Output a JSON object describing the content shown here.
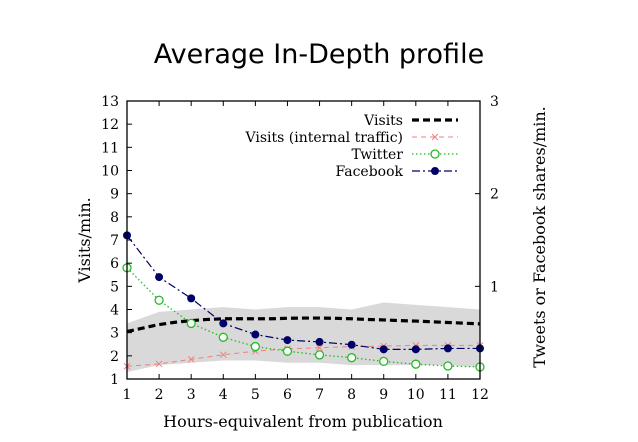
{
  "chart_data": {
    "type": "line",
    "title": "Average In-Depth profile",
    "xlabel": "Hours-equivalent from publication",
    "ylabel": "Visits/min.",
    "y2label": "Tweets or Facebook shares/min.",
    "x": [
      1,
      2,
      3,
      4,
      5,
      6,
      7,
      8,
      9,
      10,
      11,
      12
    ],
    "xlim": [
      1,
      12
    ],
    "ylim": [
      1,
      13
    ],
    "y2lim": [
      0,
      3
    ],
    "xticks": [
      1,
      2,
      3,
      4,
      5,
      6,
      7,
      8,
      9,
      10,
      11,
      12
    ],
    "yticks": [
      1,
      2,
      3,
      4,
      5,
      6,
      7,
      8,
      9,
      10,
      11,
      12,
      13
    ],
    "y2ticks": [
      1,
      2,
      3
    ],
    "grid": false,
    "legend_position": "top-right",
    "band": {
      "axis": "left",
      "color": "#d9d9d9",
      "upper": [
        3.4,
        3.9,
        4.0,
        4.1,
        4.0,
        4.1,
        4.1,
        4.0,
        4.3,
        4.2,
        4.1,
        4.0
      ],
      "lower": [
        1.3,
        1.6,
        1.7,
        1.8,
        1.8,
        1.7,
        1.7,
        1.6,
        1.6,
        1.6,
        1.6,
        1.5
      ]
    },
    "series": [
      {
        "name": "Visits",
        "axis": "left",
        "color": "#000000",
        "style": "thick-dashed",
        "x": [
          1,
          1.5,
          2,
          2.5,
          3,
          3.5,
          4,
          4.5,
          5,
          5.5,
          6,
          6.5,
          7,
          7.5,
          8,
          8.5,
          9,
          9.5,
          10,
          10.5,
          11,
          11.5,
          12
        ],
        "values": [
          3.05,
          3.2,
          3.35,
          3.45,
          3.52,
          3.57,
          3.6,
          3.6,
          3.6,
          3.6,
          3.62,
          3.63,
          3.63,
          3.62,
          3.6,
          3.57,
          3.55,
          3.52,
          3.5,
          3.47,
          3.44,
          3.41,
          3.38
        ]
      },
      {
        "name": "Visits (internal traffic)",
        "axis": "left",
        "color": "#f08080",
        "style": "dashed-cross",
        "x": [
          1,
          2,
          3,
          4,
          5,
          6,
          7,
          8,
          9,
          10,
          11,
          12
        ],
        "values": [
          1.55,
          1.65,
          1.85,
          2.05,
          2.2,
          2.3,
          2.35,
          2.4,
          2.42,
          2.45,
          2.45,
          2.45
        ]
      },
      {
        "name": "Twitter",
        "axis": "right",
        "color": "#22bb22",
        "style": "dotted-open-circle",
        "x": [
          1,
          2,
          3,
          4,
          5,
          6,
          7,
          8,
          9,
          10,
          11,
          12
        ],
        "values": [
          1.2,
          0.85,
          0.6,
          0.45,
          0.35,
          0.3,
          0.26,
          0.23,
          0.19,
          0.16,
          0.14,
          0.13
        ]
      },
      {
        "name": "Facebook",
        "axis": "right",
        "color": "#000066",
        "style": "dashdot-filled-circle",
        "x": [
          1,
          2,
          3,
          4,
          5,
          6,
          7,
          8,
          9,
          10,
          11,
          12
        ],
        "values": [
          1.55,
          1.1,
          0.87,
          0.6,
          0.48,
          0.42,
          0.4,
          0.37,
          0.32,
          0.32,
          0.33,
          0.33
        ]
      }
    ]
  }
}
